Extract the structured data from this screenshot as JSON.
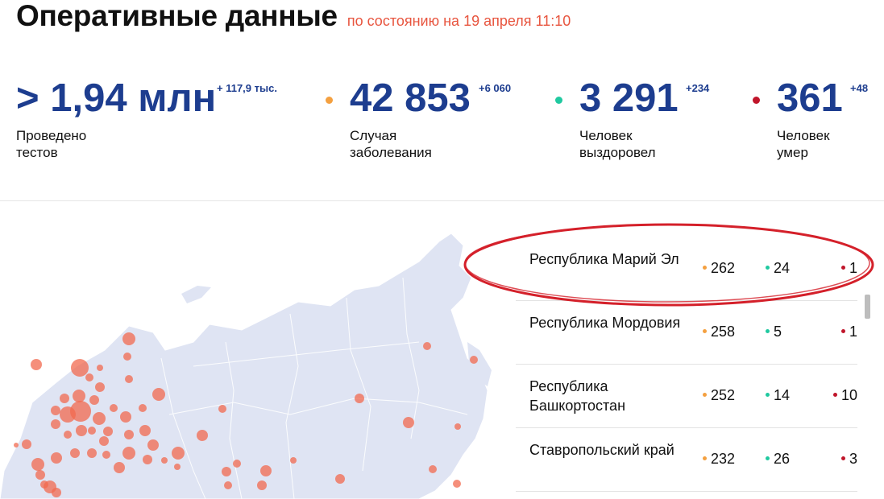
{
  "header": {
    "title": "Оперативные данные",
    "subtitle": "по состоянию на 19 апреля 11:10"
  },
  "stats": [
    {
      "value": "> 1,94 млн",
      "delta": "+ 117,9 тыс.",
      "label_line1": "Проведено",
      "label_line2": "тестов"
    },
    {
      "value": "42 853",
      "delta": "+6 060",
      "label_line1": "Случая",
      "label_line2": "заболевания",
      "dot_color": "#f4a040"
    },
    {
      "value": "3 291",
      "delta": "+234",
      "label_line1": "Человек",
      "label_line2": "выздоровел",
      "dot_color": "#20c9a0"
    },
    {
      "value": "361",
      "delta": "+48",
      "label_line1": "Человек",
      "label_line2": "умер",
      "dot_color": "#c0152a"
    }
  ],
  "regions": [
    {
      "name": "Республика Марий Эл",
      "cases": "262",
      "recovered": "24",
      "deaths": "1"
    },
    {
      "name": "Республика Мордовия",
      "cases": "258",
      "recovered": "5",
      "deaths": "1"
    },
    {
      "name": "Республика Башкортостан",
      "cases": "252",
      "recovered": "14",
      "deaths": "10"
    },
    {
      "name": "Ставропольский край",
      "cases": "232",
      "recovered": "26",
      "deaths": "3"
    }
  ],
  "colors": {
    "accent_blue": "#1d3d8f",
    "subtitle_orange": "#e8553f",
    "cases_dot": "#f4a040",
    "recovered_dot": "#20c9a0",
    "deaths_dot": "#c0152a",
    "map_fill": "#dfe4f3",
    "map_bubble": "#f26a4f",
    "annotation_ring": "#d4202a"
  }
}
